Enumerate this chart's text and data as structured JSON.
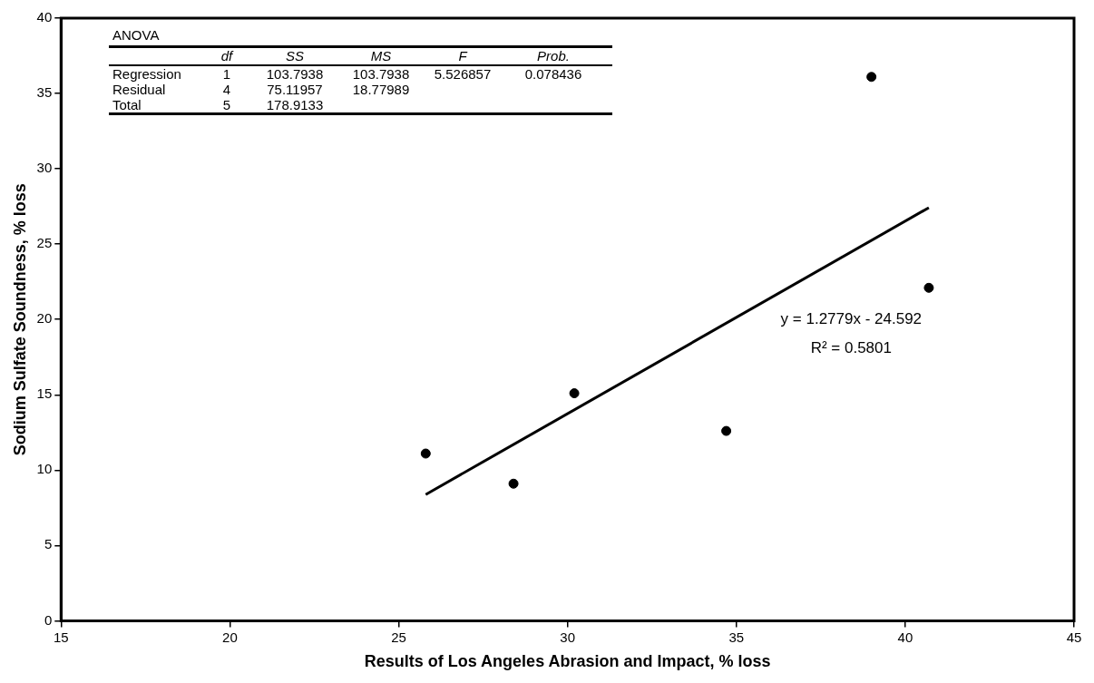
{
  "chart_data": {
    "type": "scatter",
    "xlabel": "Results of Los Angeles Abrasion and Impact, % loss",
    "ylabel": "Sodium Sulfate Soundness, % loss",
    "xlim": [
      15,
      45
    ],
    "xticks": [
      15,
      20,
      25,
      30,
      35,
      40,
      45
    ],
    "ylim": [
      0,
      40
    ],
    "yticks": [
      0,
      5,
      10,
      15,
      20,
      25,
      30,
      35,
      40
    ],
    "series": [
      {
        "type": "scatter",
        "color": "#000000",
        "marker": "circle",
        "x": [
          25.8,
          28.4,
          30.2,
          34.7,
          39.0,
          40.7
        ],
        "values": [
          11.1,
          9.1,
          15.1,
          12.6,
          36.1,
          22.1
        ]
      },
      {
        "type": "line",
        "color": "#000000",
        "marker": "none",
        "line_style": "solid",
        "x": [
          25.8,
          40.7
        ],
        "values": [
          8.38,
          27.42
        ]
      }
    ],
    "annotations": [
      "ANOVA",
      "df",
      "SS",
      "MS",
      "F",
      "Prob.",
      "Regression",
      "1",
      "103.7938",
      "103.7938",
      "5.526857",
      "0.078436",
      "Residual",
      "4",
      "75.11957",
      "18.77989",
      "Total",
      "5",
      "178.9133",
      "y = 1.2779x - 24.592",
      "R² = 0.5801"
    ],
    "grid": false,
    "legend": false
  }
}
